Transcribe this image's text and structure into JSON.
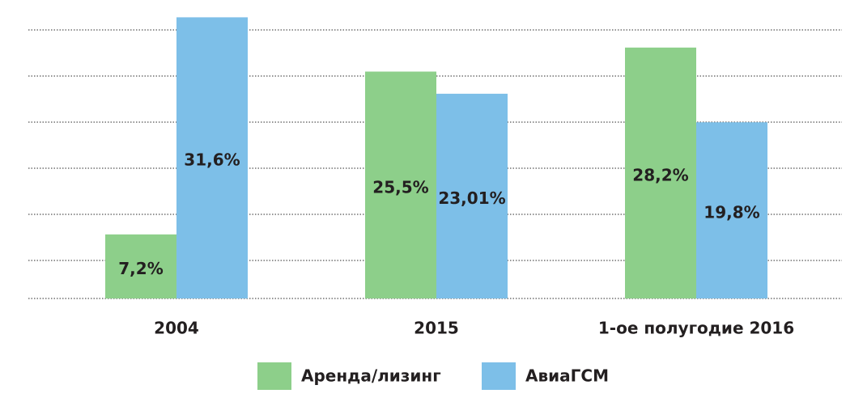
{
  "chart_data": {
    "type": "bar",
    "categories": [
      "2004",
      "2015",
      "1-ое полугодие 2016"
    ],
    "series": [
      {
        "name": "Аренда/лизинг",
        "color": "#8dcf8a",
        "values": [
          7.2,
          25.5,
          28.2
        ],
        "value_labels": [
          "7,2%",
          "25,5%",
          "28,2%"
        ]
      },
      {
        "name": "АвиаГСМ",
        "color": "#7dbfe8",
        "values": [
          31.6,
          23.01,
          19.8
        ],
        "value_labels": [
          "31,6%",
          "23,01%",
          "19,8%"
        ]
      }
    ],
    "ylim": [
      0,
      32
    ],
    "grid": true,
    "legend": "bottom"
  }
}
